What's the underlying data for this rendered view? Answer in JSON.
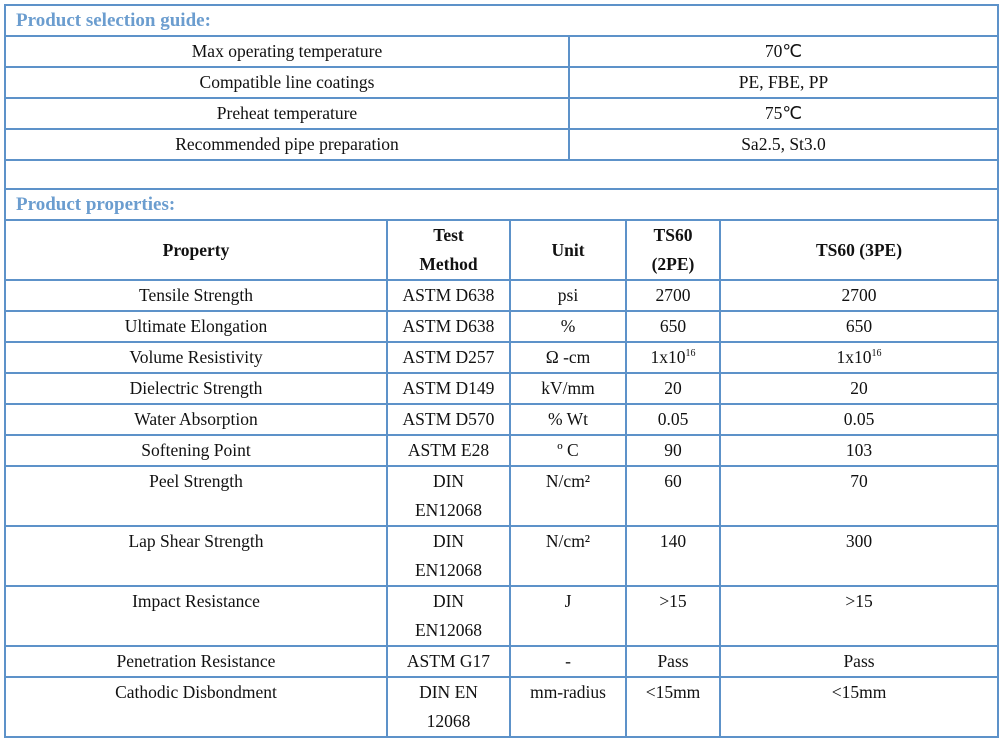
{
  "selection_guide": {
    "title": "Product selection guide:",
    "rows": [
      {
        "label": "Max operating temperature",
        "value": "70℃"
      },
      {
        "label": "Compatible line coatings",
        "value": "PE, FBE, PP"
      },
      {
        "label": "Preheat temperature",
        "value": "75℃"
      },
      {
        "label": "Recommended pipe preparation",
        "value": "Sa2.5, St3.0"
      }
    ]
  },
  "properties": {
    "title": "Product properties:",
    "headers": {
      "property": "Property",
      "method_1": "Test",
      "method_2": "Method",
      "unit": "Unit",
      "c2pe_1": "TS60",
      "c2pe_2": "(2PE)",
      "c3pe": "TS60 (3PE)"
    },
    "rows": [
      {
        "property": "Tensile Strength",
        "method": "ASTM D638",
        "unit": "psi",
        "v2pe": "2700",
        "v3pe": "2700"
      },
      {
        "property": "Ultimate Elongation",
        "method": "ASTM D638",
        "unit": "%",
        "v2pe": "650",
        "v3pe": "650"
      },
      {
        "property": "Volume Resistivity",
        "method": "ASTM D257",
        "unit": "Ω -cm",
        "v2pe": "1x10",
        "v2pe_exp": "16",
        "v3pe": "1x10",
        "v3pe_exp": "16"
      },
      {
        "property": "Dielectric Strength",
        "method": "ASTM D149",
        "unit": "kV/mm",
        "v2pe": "20",
        "v3pe": "20"
      },
      {
        "property": "Water Absorption",
        "method": "ASTM D570",
        "unit": "% Wt",
        "v2pe": "0.05",
        "v3pe": "0.05"
      },
      {
        "property": "Softening Point",
        "method": "ASTM E28",
        "unit": "º C",
        "v2pe": "90",
        "v3pe": "103"
      },
      {
        "property": "Peel Strength",
        "method": "DIN",
        "method_2": "EN12068",
        "unit": "N/cm²",
        "v2pe": "60",
        "v3pe": "70"
      },
      {
        "property": "Lap Shear Strength",
        "method": "DIN",
        "method_2": "EN12068",
        "unit": "N/cm²",
        "v2pe": "140",
        "v3pe": "300"
      },
      {
        "property": "Impact Resistance",
        "method": "DIN",
        "method_2": "EN12068",
        "unit": "J",
        "v2pe": ">15",
        "v3pe": ">15"
      },
      {
        "property": "Penetration Resistance",
        "method": "ASTM G17",
        "unit": "-",
        "v2pe": "Pass",
        "v3pe": "Pass"
      },
      {
        "property": "Cathodic Disbondment",
        "method": "DIN EN",
        "method_2": "12068",
        "unit": "mm-radius",
        "v2pe": "<15mm",
        "v3pe": "<15mm"
      }
    ]
  }
}
